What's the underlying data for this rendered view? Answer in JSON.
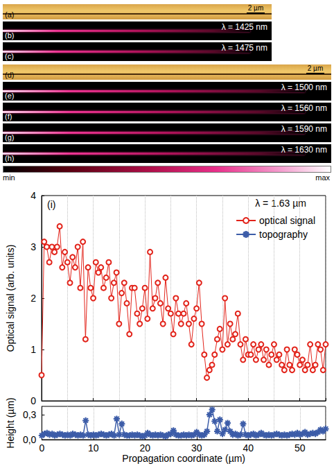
{
  "figure": {
    "panel_groups": [
      {
        "scale_bar": "2 µm",
        "panels": [
          {
            "label": "(a)",
            "kind": "topography"
          },
          {
            "label": "(b)",
            "kind": "optical",
            "text": "λ = 1425 nm"
          },
          {
            "label": "(c)",
            "kind": "optical",
            "text": "λ = 1475 nm"
          }
        ]
      },
      {
        "scale_bar": "2 µm",
        "panels": [
          {
            "label": "(d)",
            "kind": "topography"
          },
          {
            "label": "(e)",
            "kind": "optical",
            "text": "λ = 1500 nm"
          },
          {
            "label": "(f)",
            "kind": "optical",
            "text": "λ = 1560 nm"
          },
          {
            "label": "(g)",
            "kind": "optical",
            "text": "λ = 1590 nm"
          },
          {
            "label": "(h)",
            "kind": "optical",
            "text": "λ = 1630 nm"
          }
        ]
      }
    ],
    "colorbar": {
      "min_label": "min",
      "max_label": "max"
    }
  },
  "chart_data": {
    "type": "line",
    "panel_label": "(i)",
    "annotation": "λ = 1.63 µm",
    "x_label": "Propagation coordinate (µm)",
    "xlim": [
      0,
      55
    ],
    "xticks": [
      0,
      10,
      20,
      30,
      40,
      50
    ],
    "grid": true,
    "legend": "upper right",
    "x": [
      0,
      0.5,
      1,
      1.5,
      2,
      2.5,
      3,
      3.5,
      4,
      4.5,
      5,
      5.5,
      6,
      6.5,
      7,
      7.5,
      8,
      8.5,
      9,
      9.5,
      10,
      10.5,
      11,
      11.5,
      12,
      12.5,
      13,
      13.5,
      14,
      14.5,
      15,
      15.5,
      16,
      16.5,
      17,
      17.5,
      18,
      18.5,
      19,
      19.5,
      20,
      20.5,
      21,
      21.5,
      22,
      22.5,
      23,
      23.5,
      24,
      24.5,
      25,
      25.5,
      26,
      26.5,
      27,
      27.5,
      28,
      28.5,
      29,
      29.5,
      30,
      30.5,
      31,
      31.5,
      32,
      32.5,
      33,
      33.5,
      34,
      34.5,
      35,
      35.5,
      36,
      36.5,
      37,
      37.5,
      38,
      38.5,
      39,
      39.5,
      40,
      40.5,
      41,
      41.5,
      42,
      42.5,
      43,
      43.5,
      44,
      44.5,
      45,
      45.5,
      46,
      46.5,
      47,
      47.5,
      48,
      48.5,
      49,
      49.5,
      50,
      50.5,
      51,
      51.5,
      52,
      52.5,
      53,
      53.5,
      54,
      54.5,
      55
    ],
    "series": [
      {
        "name": "optical signal",
        "color": "#e2231a",
        "marker": "open circle",
        "y_label": "Optical signal (arb. units)",
        "ylim": [
          0,
          4
        ],
        "yticks": [
          0,
          1,
          2,
          3,
          4
        ],
        "values": [
          0.5,
          3.1,
          3.0,
          2.7,
          3.0,
          2.9,
          3.0,
          3.4,
          2.6,
          2.9,
          2.7,
          2.3,
          2.8,
          2.6,
          3.0,
          2.2,
          3.1,
          1.2,
          2.6,
          2.2,
          2.0,
          2.7,
          2.5,
          2.6,
          2.2,
          2.4,
          2.7,
          2.0,
          2.3,
          2.5,
          1.5,
          2.1,
          2.3,
          1.9,
          1.3,
          2.2,
          2.2,
          1.7,
          1.5,
          1.8,
          2.2,
          1.6,
          2.9,
          1.8,
          2.0,
          2.3,
          1.9,
          1.5,
          2.4,
          1.8,
          1.7,
          1.3,
          2.0,
          1.7,
          1.5,
          1.7,
          1.9,
          1.5,
          1.1,
          1.6,
          1.8,
          2.3,
          1.5,
          0.9,
          0.45,
          0.6,
          0.7,
          0.9,
          1.2,
          1.4,
          1.0,
          2.0,
          1.1,
          1.5,
          1.2,
          1.3,
          1.7,
          1.1,
          0.8,
          1.2,
          0.9,
          0.9,
          1.1,
          0.8,
          1.0,
          1.1,
          0.8,
          1.0,
          0.7,
          0.9,
          1.1,
          0.8,
          0.9,
          0.7,
          0.6,
          1.0,
          0.7,
          0.6,
          1.0,
          0.9,
          0.7,
          0.8,
          0.6,
          0.7,
          1.1,
          0.6,
          0.7,
          1.1,
          1.0,
          0.6,
          1.1
        ]
      },
      {
        "name": "topography",
        "color": "#3c5ca8",
        "marker": "asterisk",
        "y_label": "Height (µm)",
        "ylim": [
          0,
          0.4
        ],
        "yticks": [
          {
            "value": 0,
            "label": "0,0"
          },
          {
            "value": 0.3,
            "label": "0,3"
          }
        ],
        "values": [
          0.05,
          0.07,
          0.08,
          0.06,
          0.07,
          0.05,
          0.06,
          0.07,
          0.06,
          0.05,
          0.06,
          0.05,
          0.07,
          0.06,
          0.05,
          0.06,
          0.05,
          0.23,
          0.06,
          0.05,
          0.06,
          0.05,
          0.06,
          0.07,
          0.06,
          0.05,
          0.06,
          0.07,
          0.05,
          0.25,
          0.06,
          0.19,
          0.06,
          0.05,
          0.05,
          0.06,
          0.05,
          0.06,
          0.05,
          0.04,
          0.05,
          0.08,
          0.06,
          0.05,
          0.06,
          0.05,
          0.06,
          0.05,
          0.04,
          0.06,
          0.07,
          0.11,
          0.06,
          0.05,
          0.05,
          0.06,
          0.05,
          0.06,
          0.05,
          0.06,
          0.09,
          0.06,
          0.05,
          0.06,
          0.1,
          0.3,
          0.36,
          0.22,
          0.1,
          0.24,
          0.07,
          0.12,
          0.2,
          0.1,
          0.06,
          0.07,
          0.05,
          0.06,
          0.19,
          0.06,
          0.05,
          0.06,
          0.07,
          0.05,
          0.06,
          0.08,
          0.06,
          0.05,
          0.06,
          0.05,
          0.06,
          0.07,
          0.06,
          0.05,
          0.06,
          0.05,
          0.06,
          0.07,
          0.06,
          0.08,
          0.06,
          0.07,
          0.09,
          0.06,
          0.07,
          0.08,
          0.07,
          0.09,
          0.12,
          0.1,
          0.13
        ]
      }
    ]
  }
}
